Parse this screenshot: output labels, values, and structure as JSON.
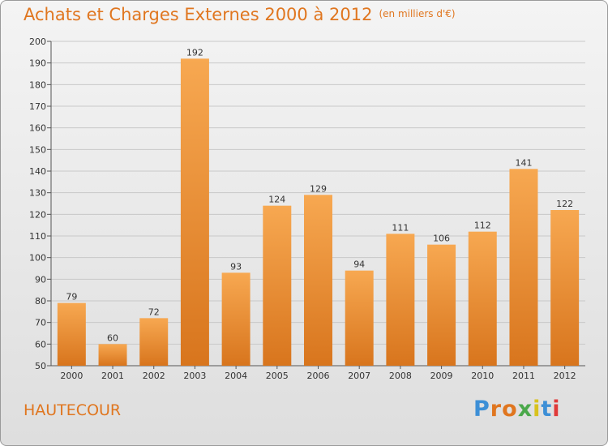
{
  "title": "Achats et Charges Externes 2000 à 2012",
  "unit": "(en milliers d'€)",
  "place": "HAUTECOUR",
  "logo": "Proxiti",
  "logo_colors": [
    "#3d8fd6",
    "#e0761f",
    "#e0761f",
    "#4aa84a",
    "#d8c21e",
    "#3d8fd6",
    "#e03a3a"
  ],
  "colors": {
    "accent": "#e0761f",
    "bar_top": "#f7a851",
    "bar_bottom": "#d8751d"
  },
  "chart_data": {
    "type": "bar",
    "title": "Achats et Charges Externes 2000 à 2012",
    "subtitle": "(en milliers d'€)",
    "categories": [
      "2000",
      "2001",
      "2002",
      "2003",
      "2004",
      "2005",
      "2006",
      "2007",
      "2008",
      "2009",
      "2010",
      "2011",
      "2012"
    ],
    "values": [
      79,
      60,
      72,
      192,
      93,
      124,
      129,
      94,
      111,
      106,
      112,
      141,
      122
    ],
    "ylim": [
      50,
      200
    ],
    "yticks": [
      50,
      60,
      70,
      80,
      90,
      100,
      110,
      120,
      130,
      140,
      150,
      160,
      170,
      180,
      190,
      200
    ],
    "grid": true,
    "xlabel": "",
    "ylabel": ""
  }
}
